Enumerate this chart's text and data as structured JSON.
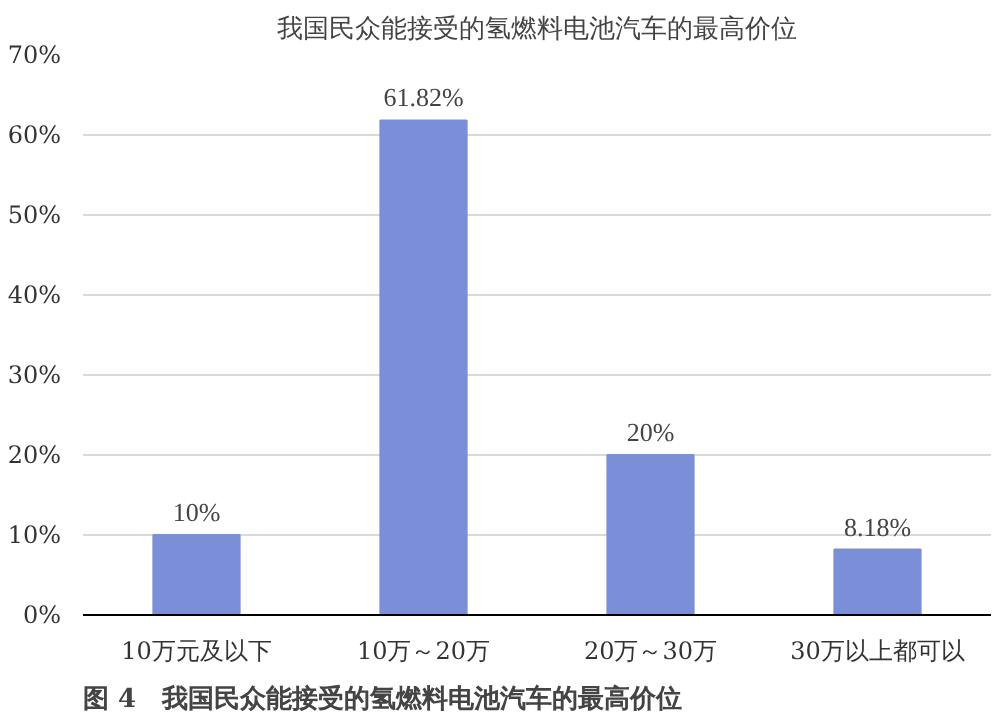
{
  "chart_data": {
    "type": "bar",
    "title": "我国民众能接受的氢燃料电池汽车的最高价位",
    "categories": [
      "10万元及以下",
      "10万～20万",
      "20万～30万",
      "30万以上都可以"
    ],
    "values": [
      10,
      61.82,
      20,
      8.18
    ],
    "value_labels": [
      "10%",
      "61.82%",
      "20%",
      "8.18%"
    ],
    "color": "#7b8fd8",
    "ylim": [
      0,
      70
    ],
    "yticks": [
      {
        "value": 0,
        "label": "0%"
      },
      {
        "value": 10,
        "label": "10%"
      },
      {
        "value": 20,
        "label": "20%"
      },
      {
        "value": 30,
        "label": "30%"
      },
      {
        "value": 40,
        "label": "40%"
      },
      {
        "value": 50,
        "label": "50%"
      },
      {
        "value": 60,
        "label": "60%"
      },
      {
        "value": 70,
        "label": "70%"
      }
    ],
    "grid": "y",
    "annotations": [
      "图 4　我国民众能接受的氢燃料电池汽车的最高价位"
    ]
  }
}
